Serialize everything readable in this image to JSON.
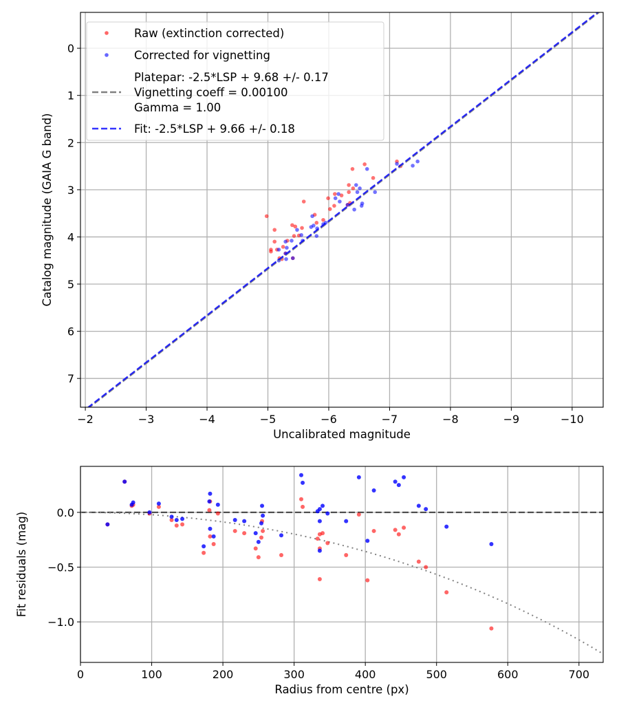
{
  "chart_data": [
    {
      "type": "scatter",
      "xlabel": "Uncalibrated magnitude",
      "ylabel": "Catalog magnitude (GAIA G band)",
      "xlim": [
        -1.92,
        -10.51
      ],
      "ylim": [
        7.61,
        -0.76
      ],
      "x_inverted": true,
      "y_inverted": true,
      "grid": true,
      "xticks": [
        -2,
        -3,
        -4,
        -5,
        -6,
        -7,
        -8,
        -9,
        -10
      ],
      "xtick_labels": [
        "−2",
        "−3",
        "−4",
        "−5",
        "−6",
        "−7",
        "−8",
        "−9",
        "−10"
      ],
      "yticks": [
        0,
        1,
        2,
        3,
        4,
        5,
        6,
        7
      ],
      "ytick_labels": [
        "0",
        "1",
        "2",
        "3",
        "4",
        "5",
        "6",
        "7"
      ],
      "legend_position": "top-left",
      "legend": [
        {
          "label": "Raw (extinction corrected)",
          "marker": "dot",
          "color": "#ff0000"
        },
        {
          "label": "Corrected for vignetting",
          "marker": "dot",
          "color": "#0000ff"
        },
        {
          "label_lines": [
            "Platepar: -2.5*LSP + 9.68 +/- 0.17",
            "Vignetting coeff = 0.00100",
            "Gamma = 1.00"
          ],
          "marker": "dashed-line",
          "color": "#808080"
        },
        {
          "label": "Fit: -2.5*LSP + 9.66 +/- 0.18",
          "marker": "dashed-line",
          "color": "#0000ff"
        }
      ],
      "lines": [
        {
          "name": "Platepar",
          "slope": 1,
          "intercept": 9.68,
          "color": "#808080",
          "style": "dashed"
        },
        {
          "name": "Fit",
          "slope": 1,
          "intercept": 9.66,
          "color": "#0000ff",
          "style": "dashed"
        }
      ],
      "series": [
        {
          "name": "Raw (extinction corrected)",
          "color": "#ff0000",
          "alpha": 0.55,
          "points": [
            [
              -4.98,
              3.56
            ],
            [
              -5.11,
              3.85
            ],
            [
              -5.11,
              4.1
            ],
            [
              -5.05,
              4.27
            ],
            [
              -5.05,
              4.31
            ],
            [
              -5.15,
              4.27
            ],
            [
              -5.25,
              4.21
            ],
            [
              -5.32,
              4.08
            ],
            [
              -5.4,
              3.75
            ],
            [
              -5.45,
              3.78
            ],
            [
              -5.56,
              3.81
            ],
            [
              -5.43,
              3.98
            ],
            [
              -5.51,
              3.97
            ],
            [
              -5.59,
              3.25
            ],
            [
              -5.77,
              3.53
            ],
            [
              -5.8,
              3.7
            ],
            [
              -5.91,
              3.64
            ],
            [
              -5.99,
              3.18
            ],
            [
              -6.1,
              3.09
            ],
            [
              -6.21,
              3.12
            ],
            [
              -6.09,
              3.34
            ],
            [
              -6.02,
              3.41
            ],
            [
              -6.31,
              3.32
            ],
            [
              -6.35,
              3.28
            ],
            [
              -6.33,
              2.9
            ],
            [
              -6.4,
              2.97
            ],
            [
              -6.33,
              3.05
            ],
            [
              -6.39,
              2.56
            ],
            [
              -6.59,
              2.46
            ],
            [
              -6.73,
              2.75
            ],
            [
              -7.12,
              2.4
            ],
            [
              -7.18,
              2.5
            ],
            [
              -5.19,
              4.45
            ],
            [
              -5.23,
              4.47
            ],
            [
              -5.29,
              4.35
            ],
            [
              -5.41,
              4.45
            ]
          ]
        },
        {
          "name": "Corrected for vignetting",
          "color": "#0000ff",
          "alpha": 0.55,
          "points": [
            [
              -5.73,
              3.56
            ],
            [
              -5.71,
              3.79
            ],
            [
              -5.75,
              3.76
            ],
            [
              -5.81,
              3.82
            ],
            [
              -5.8,
              3.98
            ],
            [
              -5.48,
              3.85
            ],
            [
              -5.57,
              4.08
            ],
            [
              -5.55,
              3.96
            ],
            [
              -5.29,
              4.1
            ],
            [
              -5.39,
              4.08
            ],
            [
              -5.31,
              4.23
            ],
            [
              -5.18,
              4.27
            ],
            [
              -5.29,
              4.35
            ],
            [
              -5.3,
              4.47
            ],
            [
              -5.18,
              4.5
            ],
            [
              -5.41,
              4.45
            ],
            [
              -5.91,
              3.73
            ],
            [
              -5.95,
              3.7
            ],
            [
              -6.11,
              3.18
            ],
            [
              -6.16,
              3.09
            ],
            [
              -6.18,
              3.25
            ],
            [
              -6.31,
              3.32
            ],
            [
              -6.42,
              3.42
            ],
            [
              -6.54,
              3.34
            ],
            [
              -6.55,
              3.29
            ],
            [
              -6.45,
              2.9
            ],
            [
              -6.51,
              2.97
            ],
            [
              -6.47,
              3.05
            ],
            [
              -6.76,
              3.05
            ],
            [
              -6.63,
              2.56
            ],
            [
              -7.38,
              2.49
            ],
            [
              -7.46,
              2.4
            ],
            [
              -7.12,
              2.45
            ]
          ]
        }
      ]
    },
    {
      "type": "scatter",
      "xlabel": "Radius from centre (px)",
      "ylabel": "Fit residuals (mag)",
      "xlim": [
        0,
        734
      ],
      "ylim": [
        -1.37,
        0.42
      ],
      "grid": true,
      "xticks": [
        0,
        100,
        200,
        300,
        400,
        500,
        600,
        700
      ],
      "xtick_labels": [
        "0",
        "100",
        "200",
        "300",
        "400",
        "500",
        "600",
        "700"
      ],
      "yticks": [
        0.0,
        -0.5,
        -1.0
      ],
      "ytick_labels": [
        "0.0",
        "−0.5",
        "−1.0"
      ],
      "zero_line": {
        "y": 0,
        "color": "#505050",
        "style": "dashed"
      },
      "vignetting_curve": {
        "coeff": 0.001,
        "color": "#808080",
        "style": "dotted"
      },
      "series": [
        {
          "name": "Raw (extinction corrected)",
          "color": "#ff0000",
          "alpha": 0.6,
          "points": [
            [
              38,
              -0.11
            ],
            [
              62,
              0.28
            ],
            [
              72,
              0.06
            ],
            [
              74,
              0.07
            ],
            [
              97,
              -0.01
            ],
            [
              110,
              0.05
            ],
            [
              128,
              -0.07
            ],
            [
              135,
              -0.12
            ],
            [
              143,
              -0.11
            ],
            [
              173,
              -0.37
            ],
            [
              182,
              0.1
            ],
            [
              181,
              0.02
            ],
            [
              182,
              -0.22
            ],
            [
              187,
              -0.29
            ],
            [
              193,
              -0.01
            ],
            [
              217,
              -0.17
            ],
            [
              230,
              -0.19
            ],
            [
              246,
              -0.33
            ],
            [
              250,
              -0.41
            ],
            [
              254,
              -0.23
            ],
            [
              255,
              -0.08
            ],
            [
              256,
              -0.17
            ],
            [
              282,
              -0.39
            ],
            [
              310,
              0.12
            ],
            [
              312,
              0.05
            ],
            [
              333,
              -0.24
            ],
            [
              336,
              -0.2
            ],
            [
              336,
              -0.33
            ],
            [
              336,
              -0.61
            ],
            [
              340,
              -0.19
            ],
            [
              347,
              -0.28
            ],
            [
              373,
              -0.39
            ],
            [
              391,
              -0.02
            ],
            [
              403,
              -0.62
            ],
            [
              412,
              -0.17
            ],
            [
              442,
              -0.16
            ],
            [
              447,
              -0.2
            ],
            [
              454,
              -0.14
            ],
            [
              475,
              -0.45
            ],
            [
              485,
              -0.5
            ],
            [
              514,
              -0.73
            ],
            [
              577,
              -1.06
            ]
          ]
        },
        {
          "name": "Corrected for vignetting",
          "color": "#0000ff",
          "alpha": 0.8,
          "points": [
            [
              38,
              -0.11
            ],
            [
              62,
              0.28
            ],
            [
              72,
              0.07
            ],
            [
              74,
              0.09
            ],
            [
              97,
              0.0
            ],
            [
              110,
              0.08
            ],
            [
              128,
              -0.04
            ],
            [
              135,
              -0.07
            ],
            [
              143,
              -0.06
            ],
            [
              173,
              -0.31
            ],
            [
              182,
              0.17
            ],
            [
              181,
              0.1
            ],
            [
              182,
              -0.15
            ],
            [
              187,
              -0.22
            ],
            [
              193,
              0.07
            ],
            [
              217,
              -0.07
            ],
            [
              230,
              -0.08
            ],
            [
              246,
              -0.19
            ],
            [
              250,
              -0.27
            ],
            [
              254,
              -0.1
            ],
            [
              255,
              0.06
            ],
            [
              256,
              -0.03
            ],
            [
              282,
              -0.21
            ],
            [
              310,
              0.34
            ],
            [
              312,
              0.27
            ],
            [
              333,
              0.01
            ],
            [
              336,
              0.03
            ],
            [
              336,
              -0.08
            ],
            [
              336,
              -0.35
            ],
            [
              340,
              0.06
            ],
            [
              347,
              -0.01
            ],
            [
              373,
              -0.08
            ],
            [
              391,
              0.32
            ],
            [
              403,
              -0.26
            ],
            [
              412,
              0.2
            ],
            [
              442,
              0.28
            ],
            [
              447,
              0.25
            ],
            [
              454,
              0.32
            ],
            [
              475,
              0.06
            ],
            [
              485,
              0.03
            ],
            [
              514,
              -0.13
            ],
            [
              577,
              -0.29
            ]
          ]
        }
      ]
    }
  ]
}
